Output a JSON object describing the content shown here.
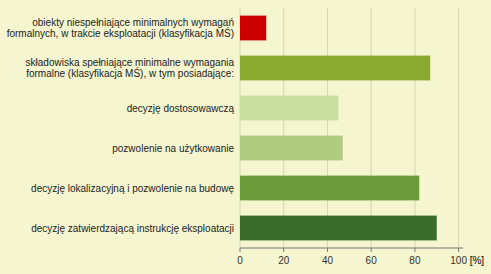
{
  "chart_data": {
    "type": "bar",
    "orientation": "horizontal",
    "categories": [
      "decyzję zatwierdzającą instrukcję eksploatacji",
      "decyzję lokalizacyjną i pozwolenie na budowę",
      "pozwolenie na użytkowanie",
      "decyzję dostosowawczą",
      "składowiska spełniające minimalne wymagania\nformalne (klasyfikacja MŚ), w tym posiadające:",
      "obiekty niespełniające minimalnych wymagań\nformalnych, w trakcie eksploatacji (klasyfikacja MŚ)"
    ],
    "values": [
      90,
      82,
      47,
      45,
      87,
      12
    ],
    "colors": [
      "#3a6b2a",
      "#6b9a3a",
      "#b0cc80",
      "#c8dfa0",
      "#8aaa30",
      "#cc0000"
    ],
    "xlabel": "[%]",
    "xlim": [
      0,
      102
    ],
    "xticks": [
      0,
      20,
      40,
      60,
      80,
      100
    ],
    "grid": true
  }
}
